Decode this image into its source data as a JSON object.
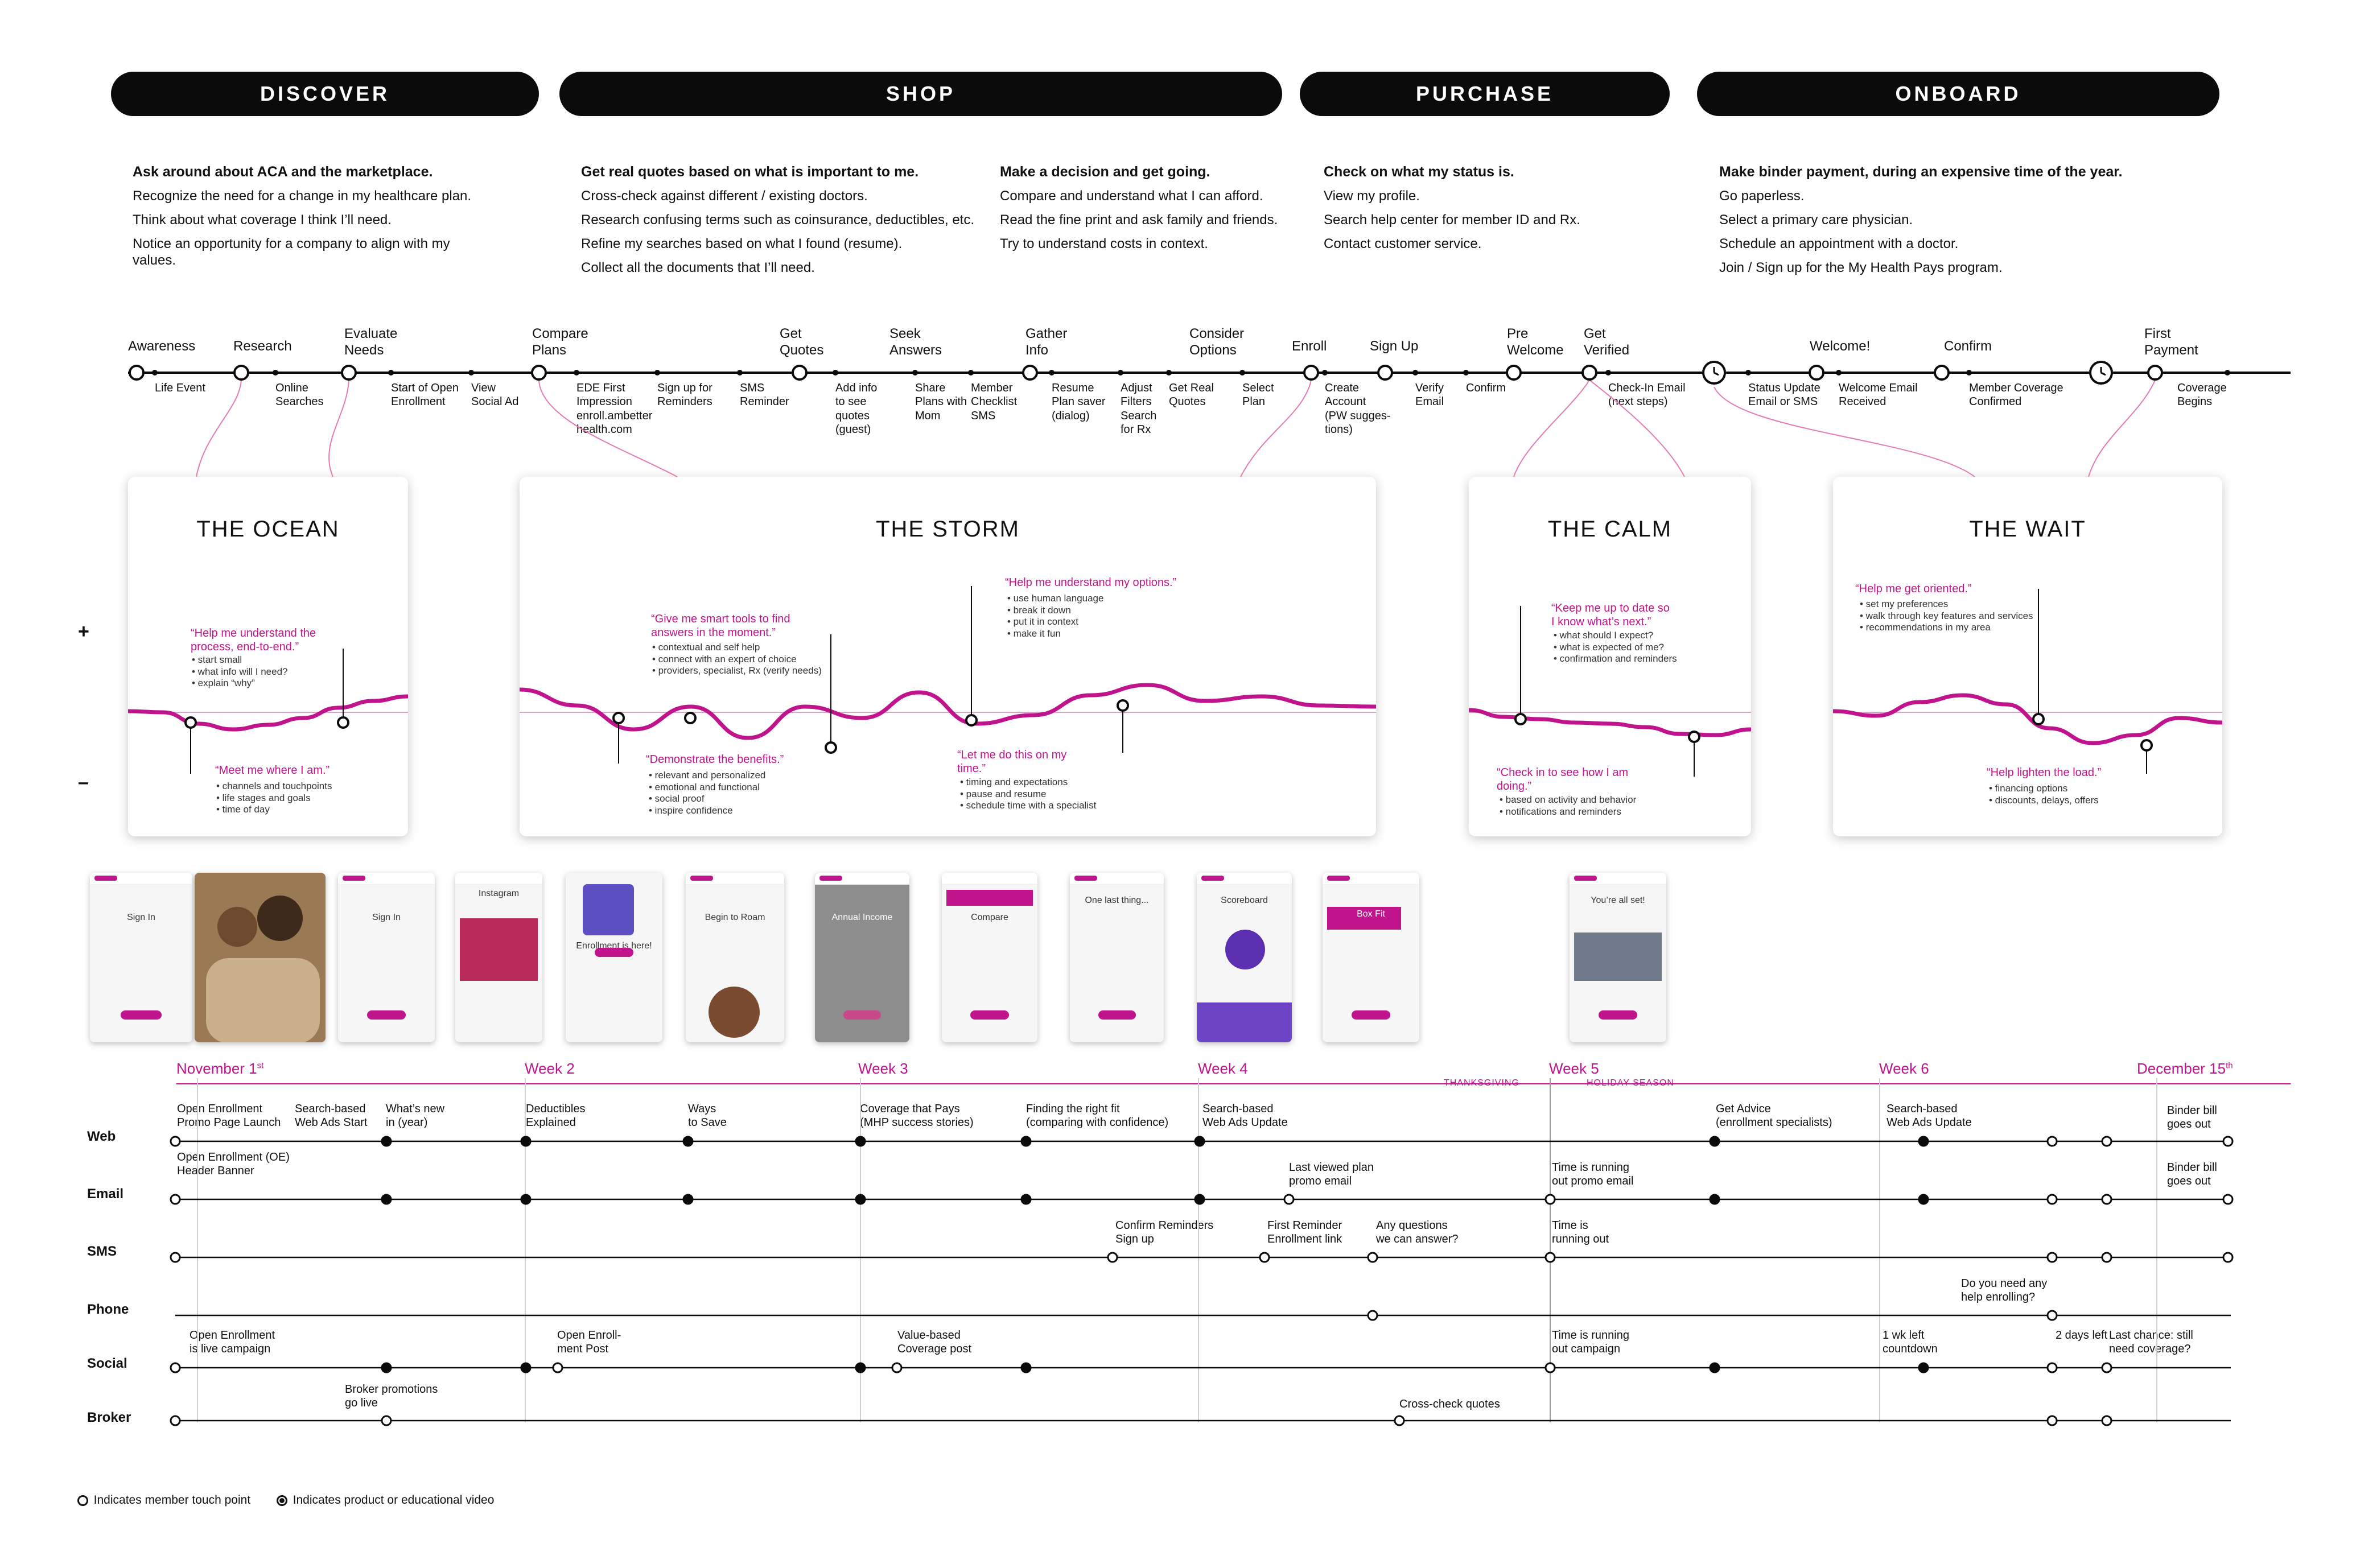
{
  "phases": [
    {
      "name": "DISCOVER"
    },
    {
      "name": "SHOP"
    },
    {
      "name": "PURCHASE"
    },
    {
      "name": "ONBOARD"
    }
  ],
  "goals": [
    {
      "title": "Ask around about ACA and the marketplace.",
      "bullets": [
        "Recognize the need for a change in my healthcare plan.",
        "Think about what coverage I think I’ll need.",
        "Notice an opportunity for a company to align with my\nvalues."
      ]
    },
    {
      "title": "Get real quotes based on what is important to me.",
      "bullets": [
        "Cross-check against different / existing doctors.",
        "Research confusing terms such as coinsurance, deductibles, etc.",
        "Refine my searches based on what I found (resume).",
        "Collect all the documents that I’ll need."
      ]
    },
    {
      "title": "Make a decision and get going.",
      "bullets": [
        "Compare and understand what I can afford.",
        "Read the fine print and ask family and friends.",
        "Try to understand costs in context."
      ]
    },
    {
      "title": "Check on what my status is.",
      "bullets": [
        "View my profile.",
        "Search help center for member ID and Rx.",
        "Contact customer service."
      ]
    },
    {
      "title": "Make binder payment, during an expensive time of the year.",
      "bullets": [
        "Go paperless.",
        "Select a primary care physician.",
        "Schedule an appointment with a doctor.",
        "Join / Sign up for the My Health Pays program."
      ]
    }
  ],
  "steps": [
    "Awareness",
    "Research",
    "Evaluate\nNeeds",
    "Compare\nPlans",
    "Get\nQuotes",
    "Seek\nAnswers",
    "Gather\nInfo",
    "Consider\nOptions",
    "Enroll",
    "Sign Up",
    "Pre\nWelcome",
    "Get\nVerified",
    "Welcome!",
    "Confirm",
    "First\nPayment"
  ],
  "substeps": [
    "Life Event",
    "Online\nSearches",
    "Start of Open\nEnrollment",
    "View\nSocial Ad",
    "EDE First\nImpression\nenroll.ambetter\nhealth.com",
    "Sign up for\nReminders",
    "SMS\nReminder",
    "Add info\nto see\nquotes\n(guest)",
    "Share\nPlans with\nMom",
    "Member\nChecklist\nSMS",
    "Resume\nPlan saver\n(dialog)",
    "Adjust\nFilters\nSearch\nfor Rx",
    "Get Real\nQuotes",
    "Select\nPlan",
    "Create\nAccount\n(PW sugges-\ntions)",
    "Verify\nEmail",
    "Confirm",
    "Check-In Email\n(next steps)",
    "Status Update\nEmail or SMS",
    "Welcome Email\nReceived",
    "Member Coverage\nConfirmed",
    "Coverage\nBegins"
  ],
  "cards": [
    {
      "title": "THE OCEAN",
      "quotes": [
        {
          "text": "“Help me understand the\nprocess, end-to-end.”",
          "bullets": "• start small\n• what info will I need?\n• explain “why”"
        },
        {
          "text": "“Meet me where I am.”",
          "bullets": "• channels and touchpoints\n• life stages and goals\n• time of day"
        }
      ]
    },
    {
      "title": "THE STORM",
      "quotes": [
        {
          "text": "“Give me smart tools to find\nanswers in the moment.”",
          "bullets": "• contextual and self help\n• connect with an expert of choice\n• providers, specialist, Rx (verify needs)"
        },
        {
          "text": "“Help me understand my options.”",
          "bullets": "• use human language\n• break it down\n• put it in context\n• make it fun"
        },
        {
          "text": "“Demonstrate the benefits.”",
          "bullets": "• relevant and personalized\n• emotional and functional\n• social proof\n• inspire confidence"
        },
        {
          "text": "“Let me do this on my\ntime.”",
          "bullets": "• timing and expectations\n• pause and resume\n• schedule time with a specialist"
        }
      ]
    },
    {
      "title": "THE CALM",
      "quotes": [
        {
          "text": "“Keep me up to date so\nI know what’s next.”",
          "bullets": "• what should I expect?\n• what is expected of me?\n• confirmation and reminders"
        },
        {
          "text": "“Check in to see how I am\ndoing.”",
          "bullets": "• based on activity and behavior\n• notifications and reminders"
        }
      ]
    },
    {
      "title": "THE WAIT",
      "quotes": [
        {
          "text": "“Help me get oriented.”",
          "bullets": "• set my preferences\n• walk through key features and services\n• recommendations in my area"
        },
        {
          "text": "“Help lighten the load.”",
          "bullets": "• financing options\n• discounts, delays, offers"
        }
      ]
    }
  ],
  "emotion_axis": {
    "plus": "+",
    "minus": "–"
  },
  "screens": [
    {
      "caption": "Sign In"
    },
    {
      "caption": "photo"
    },
    {
      "caption": "Sign In"
    },
    {
      "caption": "Instagram"
    },
    {
      "caption": "Enrollment is here!"
    },
    {
      "caption": "Begin to Roam"
    },
    {
      "caption": "Annual Income"
    },
    {
      "caption": "Compare"
    },
    {
      "caption": "One last thing..."
    },
    {
      "caption": "Scoreboard"
    },
    {
      "caption": "Box Fit"
    },
    {
      "caption": "You’re all set!"
    }
  ],
  "timeline": {
    "weeks": [
      {
        "label": "November 1",
        "sup": "st"
      },
      {
        "label": "Week 2"
      },
      {
        "label": "Week 3"
      },
      {
        "label": "Week 4"
      },
      {
        "label": "Week 5"
      },
      {
        "label": "Week 6"
      },
      {
        "label": "December 15",
        "sup": "th"
      }
    ],
    "thanksgiving": "THANKSGIVING",
    "holiday": "HOLIDAY SEASON",
    "channels": [
      "Web",
      "Email",
      "SMS",
      "Phone",
      "Social",
      "Broker"
    ],
    "events": [
      "Open Enrollment\nPromo Page Launch",
      "Search-based\nWeb Ads Start",
      "What’s new\nin (year)",
      "Deductibles\nExplained",
      "Ways\nto Save",
      "Coverage that Pays\n(MHP success stories)",
      "Finding the right fit\n(comparing with confidence)",
      "Search-based\nWeb Ads Update",
      "Get Advice\n(enrollment specialists)",
      "Search-based\nWeb Ads Update",
      "Binder bill\ngoes out",
      "Open Enrollment (OE)\nHeader Banner",
      "Last viewed plan\npromo email",
      "Time is running\nout promo email",
      "Binder bill\ngoes out",
      "Confirm Reminders\nSign up",
      "First Reminder\nEnrollment link",
      "Any questions\nwe can answer?",
      "Time is\nrunning out",
      "Do you need any\nhelp enrolling?",
      "Open Enrollment\nis live campaign",
      "Open Enroll-\nment Post",
      "Value-based\nCoverage post",
      "Time is running\nout campaign",
      "1 wk left\ncountdown",
      "2 days left",
      "Last chance: still\nneed coverage?",
      "Broker promotions\ngo live",
      "Cross-check quotes"
    ]
  },
  "legend": [
    "Indicates member touch point",
    "Indicates product or educational video"
  ],
  "colors": {
    "accent": "#c0148c",
    "ink": "#0b0b0b",
    "pillText": "#ffffff"
  }
}
